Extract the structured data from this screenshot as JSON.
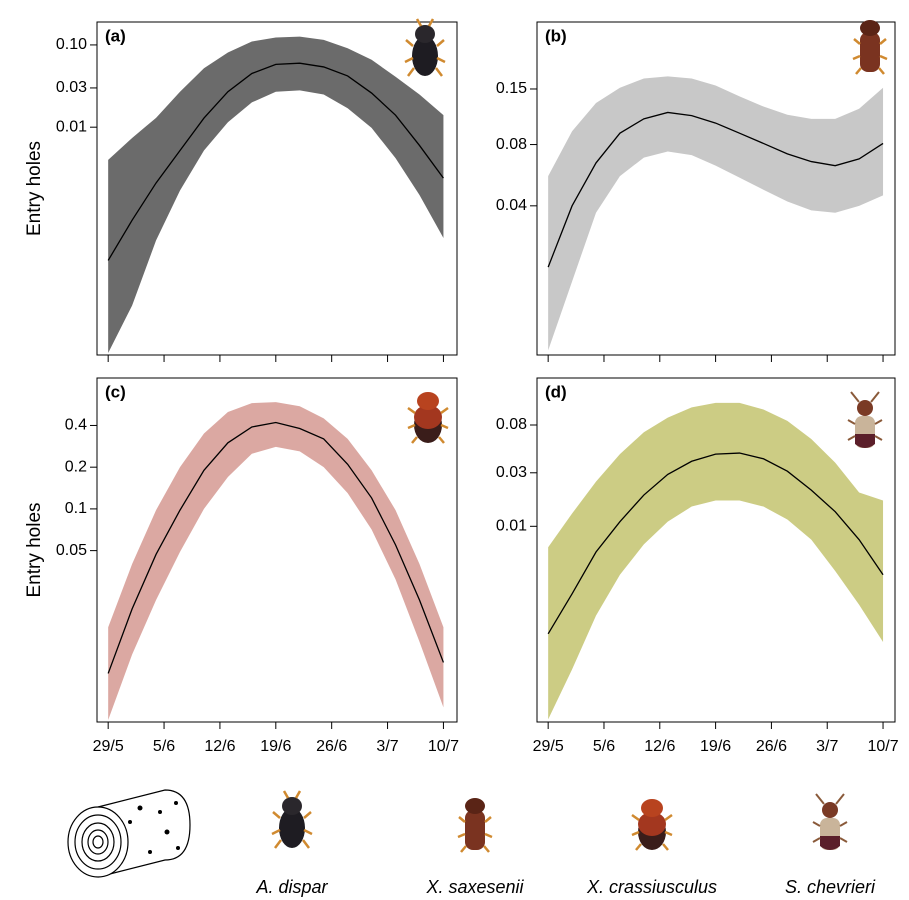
{
  "chart_data": [
    {
      "type": "line",
      "label": "(a)",
      "ylabel": "Entry holes",
      "color": "#6b6b6b",
      "line_color": "#000000",
      "log_y": true,
      "x": [
        0,
        3,
        6,
        9,
        12,
        15,
        18,
        21,
        24,
        27,
        30,
        33,
        36,
        39,
        42
      ],
      "values": [
        0.00024,
        0.00074,
        0.0021,
        0.0052,
        0.0129,
        0.027,
        0.045,
        0.058,
        0.06,
        0.054,
        0.042,
        0.026,
        0.014,
        0.006,
        0.0024
      ],
      "upper": [
        0.004,
        0.0074,
        0.013,
        0.027,
        0.052,
        0.081,
        0.11,
        0.123,
        0.126,
        0.115,
        0.091,
        0.066,
        0.041,
        0.025,
        0.014
      ],
      "lower": [
        1.8e-05,
        6.8e-05,
        0.00042,
        0.0017,
        0.0052,
        0.0115,
        0.02,
        0.027,
        0.028,
        0.025,
        0.017,
        0.0098,
        0.0042,
        0.0015,
        0.00045
      ],
      "xlim": [
        -1.4,
        43.7
      ],
      "xticks": [
        0,
        7,
        14,
        21,
        28,
        35,
        42
      ],
      "ylim": [
        1.7e-05,
        0.19
      ],
      "yticks": [
        {
          "value": 0.1,
          "label": "0.10"
        },
        0.03,
        0.01
      ]
    },
    {
      "type": "line",
      "label": "(b)",
      "color": "#c8c8c8",
      "line_color": "#000000",
      "log_y": true,
      "x": [
        0,
        3,
        6,
        9,
        12,
        15,
        18,
        21,
        24,
        27,
        30,
        33,
        36,
        39,
        42
      ],
      "values": [
        0.02,
        0.04,
        0.065,
        0.091,
        0.107,
        0.115,
        0.111,
        0.102,
        0.091,
        0.081,
        0.072,
        0.066,
        0.063,
        0.068,
        0.081
      ],
      "upper": [
        0.056,
        0.093,
        0.128,
        0.152,
        0.169,
        0.173,
        0.169,
        0.156,
        0.138,
        0.123,
        0.112,
        0.107,
        0.107,
        0.12,
        0.152
      ],
      "lower": [
        0.0078,
        0.017,
        0.037,
        0.056,
        0.069,
        0.074,
        0.071,
        0.063,
        0.055,
        0.048,
        0.042,
        0.038,
        0.037,
        0.04,
        0.045
      ],
      "xlim": [
        -1.4,
        43.5
      ],
      "xticks": [
        0,
        7,
        14,
        21,
        28,
        35,
        42
      ],
      "ylim": [
        0.0074,
        0.32
      ],
      "yticks": [
        0.15,
        0.08,
        0.04
      ]
    },
    {
      "type": "line",
      "label": "(c)",
      "ylabel": "Entry holes",
      "color": "#dba8a2",
      "line_color": "#000000",
      "log_y": true,
      "x": [
        0,
        3,
        6,
        9,
        12,
        15,
        18,
        21,
        24,
        27,
        30,
        33,
        36,
        39,
        42
      ],
      "values": [
        0.0065,
        0.019,
        0.047,
        0.098,
        0.19,
        0.3,
        0.39,
        0.42,
        0.38,
        0.32,
        0.21,
        0.12,
        0.055,
        0.022,
        0.0078
      ],
      "upper": [
        0.014,
        0.04,
        0.098,
        0.2,
        0.35,
        0.5,
        0.58,
        0.59,
        0.55,
        0.45,
        0.32,
        0.19,
        0.098,
        0.04,
        0.014
      ],
      "lower": [
        0.003,
        0.0089,
        0.022,
        0.049,
        0.1,
        0.17,
        0.25,
        0.28,
        0.26,
        0.2,
        0.13,
        0.071,
        0.031,
        0.011,
        0.0037
      ],
      "xlim": [
        -1.4,
        43.7
      ],
      "xticks": [
        {
          "value": 0,
          "label": "29/5"
        },
        {
          "value": 7,
          "label": "5/6"
        },
        {
          "value": 14,
          "label": "12/6"
        },
        {
          "value": 21,
          "label": "19/6"
        },
        {
          "value": 28,
          "label": "26/6"
        },
        {
          "value": 35,
          "label": "3/7"
        },
        {
          "value": 42,
          "label": "10/7"
        }
      ],
      "ylim": [
        0.0029,
        0.88
      ],
      "yticks": [
        0.4,
        0.2,
        0.1,
        0.05
      ]
    },
    {
      "type": "line",
      "label": "(d)",
      "color": "#cccc84",
      "line_color": "#000000",
      "log_y": true,
      "x": [
        0,
        3,
        6,
        9,
        12,
        15,
        18,
        21,
        24,
        27,
        30,
        33,
        36,
        39,
        42
      ],
      "values": [
        0.0011,
        0.0025,
        0.0059,
        0.011,
        0.019,
        0.029,
        0.038,
        0.044,
        0.045,
        0.04,
        0.031,
        0.021,
        0.0135,
        0.0076,
        0.0037
      ],
      "upper": [
        0.0065,
        0.013,
        0.025,
        0.044,
        0.069,
        0.093,
        0.115,
        0.126,
        0.126,
        0.11,
        0.087,
        0.06,
        0.037,
        0.02,
        0.017
      ],
      "lower": [
        0.00019,
        0.00053,
        0.0016,
        0.0037,
        0.0069,
        0.011,
        0.015,
        0.017,
        0.017,
        0.015,
        0.0115,
        0.0076,
        0.004,
        0.002,
        0.00093
      ],
      "xlim": [
        -1.4,
        43.5
      ],
      "xticks": [
        {
          "value": 0,
          "label": "29/5"
        },
        {
          "value": 7,
          "label": "5/6"
        },
        {
          "value": 14,
          "label": "12/6"
        },
        {
          "value": 21,
          "label": "19/6"
        },
        {
          "value": 28,
          "label": "26/6"
        },
        {
          "value": 35,
          "label": "3/7"
        },
        {
          "value": 42,
          "label": "10/7"
        }
      ],
      "ylim": [
        0.00018,
        0.21
      ],
      "yticks": [
        0.08,
        0.03,
        0.01
      ]
    }
  ],
  "species": [
    "A. dispar",
    "X. saxesenii",
    "X. crassiusculus",
    "S. chevrieri"
  ]
}
